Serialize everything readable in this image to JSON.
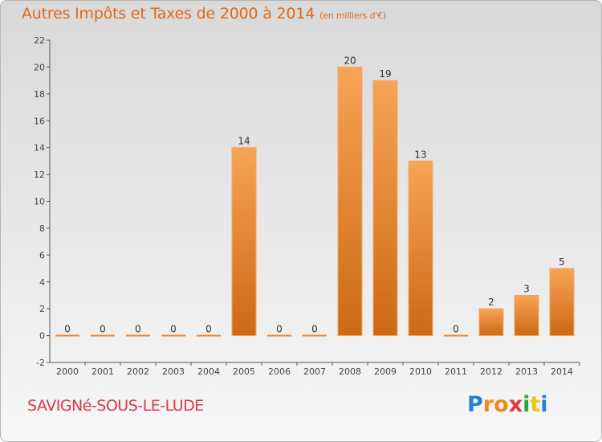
{
  "header": {
    "title": "Autres Impôts et Taxes de 2000 à 2014",
    "unit": "(en milliers d'€)"
  },
  "commune": "SAVIGNé-SOUS-LE-LUDE",
  "logo": {
    "letters": [
      "P",
      "r",
      "o",
      "x",
      "i",
      "t",
      "i"
    ],
    "colors": [
      "#2a7fd4",
      "#f08a1c",
      "#f08a1c",
      "#e23a3a",
      "#28a745",
      "#f0c419",
      "#2a7fd4"
    ]
  },
  "chart_data": {
    "type": "bar",
    "categories": [
      "2000",
      "2001",
      "2002",
      "2003",
      "2004",
      "2005",
      "2006",
      "2007",
      "2008",
      "2009",
      "2010",
      "2011",
      "2012",
      "2013",
      "2014"
    ],
    "values": [
      0,
      0,
      0,
      0,
      0,
      14,
      0,
      0,
      20,
      19,
      13,
      0,
      2,
      3,
      5
    ],
    "ylim": [
      -2,
      22
    ],
    "yticks": [
      -2,
      0,
      2,
      4,
      6,
      8,
      10,
      12,
      14,
      16,
      18,
      20,
      22
    ],
    "bar_color": "#f0892a",
    "grid": false
  }
}
